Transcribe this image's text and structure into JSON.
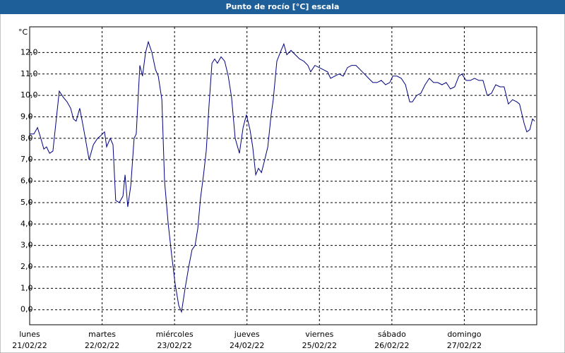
{
  "chart_data": {
    "type": "line",
    "title": "Punto de rocío [°C] escala",
    "y_unit": "°C",
    "xlim": [
      0,
      168
    ],
    "xticks": [
      0,
      24,
      48,
      72,
      96,
      120,
      144
    ],
    "day_labels": [
      "lunes",
      "martes",
      "miércoles",
      "jueves",
      "viernes",
      "sábado",
      "domingo"
    ],
    "date_labels": [
      "21/02/22",
      "22/02/22",
      "23/02/22",
      "24/02/22",
      "25/02/22",
      "26/02/22",
      "27/02/22"
    ],
    "ylim": [
      -0.7,
      13.2
    ],
    "yticks": [
      {
        "value": 0,
        "label": "0,0"
      },
      {
        "value": 1,
        "label": "1,0"
      },
      {
        "value": 2,
        "label": "2,0"
      },
      {
        "value": 3,
        "label": "3,0"
      },
      {
        "value": 4,
        "label": "4,0"
      },
      {
        "value": 5,
        "label": "5,0"
      },
      {
        "value": 6,
        "label": "6,0"
      },
      {
        "value": 7,
        "label": "7,0"
      },
      {
        "value": 8,
        "label": "8,0"
      },
      {
        "value": 9,
        "label": "9,0"
      },
      {
        "value": 10,
        "label": "10,0"
      },
      {
        "value": 11,
        "label": "11,0"
      },
      {
        "value": 12,
        "label": "12,0"
      }
    ],
    "grid": true,
    "series": [
      {
        "color": "#000080",
        "x": [
          0,
          1.4,
          2.6,
          3.7,
          4.7,
          5.6,
          6.6,
          7.7,
          9.8,
          11.2,
          12.4,
          13.6,
          14.5,
          15.4,
          16.6,
          17.8,
          19.7,
          21.1,
          22.5,
          23.4,
          24.8,
          25.5,
          26.7,
          27.6,
          28.5,
          29.7,
          30.9,
          31.6,
          32.5,
          33.5,
          34.6,
          35.3,
          36.5,
          37.4,
          38.4,
          39.3,
          40.5,
          41.7,
          42.6,
          43.8,
          44.7,
          45.9,
          47.0,
          48.2,
          49.4,
          50.3,
          51.5,
          52.7,
          53.8,
          54.8,
          55.7,
          56.6,
          57.6,
          58.5,
          59.4,
          60.4,
          61.3,
          62.2,
          63.4,
          64.6,
          65.8,
          66.9,
          68.1,
          69.5,
          70.7,
          71.8,
          73.0,
          73.9,
          74.9,
          75.8,
          76.8,
          77.7,
          78.9,
          80.0,
          80.7,
          81.9,
          83.3,
          84.2,
          85.2,
          86.6,
          88.0,
          89.4,
          90.8,
          92.2,
          93.1,
          94.5,
          95.9,
          97.3,
          98.7,
          99.7,
          101.1,
          102.5,
          103.9,
          105.3,
          106.7,
          108.1,
          109.5,
          110.9,
          112.3,
          113.7,
          115.1,
          116.5,
          117.9,
          119.3,
          120.3,
          121.7,
          123.1,
          124.5,
          125.9,
          126.8,
          128.2,
          129.6,
          131.0,
          132.4,
          133.8,
          135.2,
          136.6,
          138.0,
          139.4,
          140.8,
          142.2,
          143.2,
          144.6,
          146.0,
          147.4,
          148.8,
          150.2,
          151.6,
          153.0,
          154.4,
          155.8,
          157.2,
          158.6,
          160.0,
          161.4,
          162.3,
          163.8,
          164.7,
          165.7,
          166.6,
          167.3
        ],
        "values": [
          8.2,
          8.2,
          8.5,
          8.0,
          7.5,
          7.6,
          7.3,
          7.4,
          10.2,
          9.9,
          9.7,
          9.4,
          8.9,
          8.8,
          9.4,
          8.5,
          7.0,
          7.7,
          8.0,
          8.1,
          8.3,
          7.6,
          8.0,
          7.7,
          5.1,
          5.0,
          5.3,
          6.3,
          4.8,
          5.8,
          8.0,
          8.2,
          11.4,
          10.9,
          12.0,
          12.5,
          12.0,
          11.2,
          10.9,
          9.8,
          6.0,
          4.0,
          2.6,
          1.2,
          0.2,
          -0.1,
          1.0,
          2.0,
          2.8,
          3.0,
          3.8,
          5.2,
          6.3,
          7.4,
          9.5,
          11.5,
          11.7,
          11.5,
          11.8,
          11.6,
          10.9,
          9.9,
          8.0,
          7.3,
          8.5,
          9.1,
          8.4,
          7.6,
          6.3,
          6.6,
          6.4,
          6.9,
          7.6,
          9.1,
          9.8,
          11.6,
          12.1,
          12.4,
          11.9,
          12.1,
          11.9,
          11.7,
          11.6,
          11.4,
          11.1,
          11.4,
          11.3,
          11.2,
          11.1,
          10.8,
          10.9,
          11.0,
          10.9,
          11.3,
          11.4,
          11.4,
          11.2,
          11.0,
          10.8,
          10.6,
          10.6,
          10.7,
          10.5,
          10.6,
          10.9,
          10.9,
          10.8,
          10.5,
          9.7,
          9.7,
          10.0,
          10.1,
          10.5,
          10.8,
          10.6,
          10.6,
          10.5,
          10.6,
          10.3,
          10.4,
          10.9,
          11.0,
          10.7,
          10.7,
          10.8,
          10.7,
          10.7,
          10.0,
          10.1,
          10.5,
          10.4,
          10.4,
          9.6,
          9.8,
          9.7,
          9.6,
          8.7,
          8.3,
          8.4,
          8.9,
          8.8
        ]
      }
    ]
  }
}
